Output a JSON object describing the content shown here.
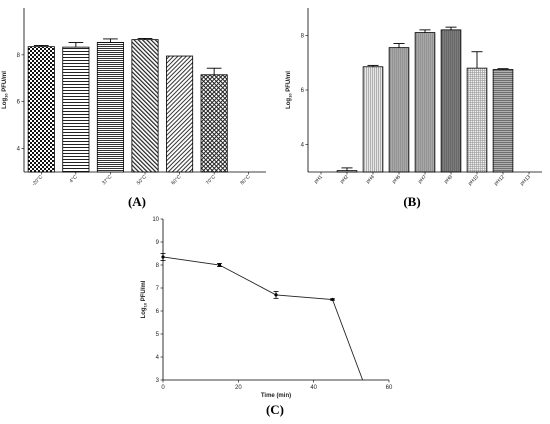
{
  "chart_data": [
    {
      "type": "bar",
      "panel_label": "(A)",
      "ylabel": "Log10 PFU/ml",
      "ylim": [
        3,
        10
      ],
      "yticks": [
        4,
        6,
        8
      ],
      "categories": [
        "-20°C",
        "4°C",
        "37°C",
        "50°C",
        "60°C",
        "70°C",
        "80°C"
      ],
      "values": [
        8.35,
        8.33,
        8.53,
        8.65,
        7.95,
        7.15,
        null
      ],
      "errors": [
        0.05,
        0.2,
        0.15,
        0.05,
        0.0,
        0.28,
        null
      ],
      "patterns": [
        "checker",
        "hstripe",
        "hstripe-dense",
        "diag-back",
        "diag-fwd",
        "crosshatch",
        "none"
      ]
    },
    {
      "type": "bar",
      "panel_label": "(B)",
      "ylabel": "Log10 PFU/ml",
      "ylim": [
        3,
        9
      ],
      "yticks": [
        4,
        6,
        8
      ],
      "categories": [
        "pH1",
        "pH2",
        "pH4",
        "pH6",
        "pH7",
        "pH9",
        "pH10",
        "pH12",
        "pH13"
      ],
      "values": [
        null,
        3.05,
        6.85,
        7.55,
        8.1,
        8.2,
        6.8,
        6.75,
        null
      ],
      "errors": [
        null,
        0.1,
        0.05,
        0.15,
        0.1,
        0.1,
        0.6,
        0.03,
        null
      ],
      "patterns": [
        "none",
        "solid-light",
        "vline-light",
        "vline-mid",
        "vline-mid",
        "vline-dark",
        "grid",
        "hline-dark",
        "none"
      ]
    },
    {
      "type": "line",
      "panel_label": "(C)",
      "xlabel": "Time (min)",
      "ylabel": "Log10 PFU/ml",
      "xlim": [
        0,
        60
      ],
      "ylim": [
        3,
        10
      ],
      "xticks": [
        0,
        20,
        40,
        60
      ],
      "yticks": [
        3,
        4,
        5,
        6,
        7,
        8,
        9,
        10
      ],
      "x": [
        0,
        15,
        30,
        45,
        53
      ],
      "y": [
        8.35,
        8.0,
        6.7,
        6.5,
        3.0
      ],
      "errors": [
        0.15,
        0.07,
        0.15,
        0.03,
        0
      ]
    }
  ]
}
